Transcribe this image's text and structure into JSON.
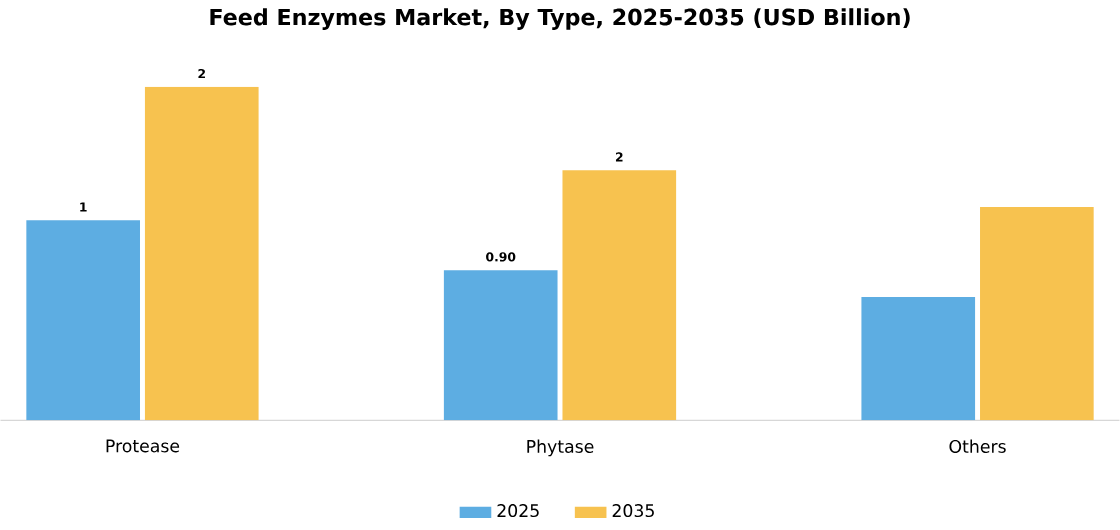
{
  "chart_data": {
    "type": "bar",
    "title": "Feed Enzymes Market, By Type, 2025-2035 (USD Billion)",
    "categories": [
      "Protease",
      "Phytase",
      "Others"
    ],
    "series": [
      {
        "name": "2025",
        "color": "#5dade2",
        "values": [
          1.2,
          0.9,
          0.74
        ],
        "value_labels": [
          "1",
          "0.90",
          null
        ]
      },
      {
        "name": "2035",
        "color": "#f7c24f",
        "values": [
          2.0,
          1.5,
          1.28
        ],
        "value_labels": [
          "2",
          "2",
          null
        ]
      }
    ],
    "legend": "bottom"
  }
}
